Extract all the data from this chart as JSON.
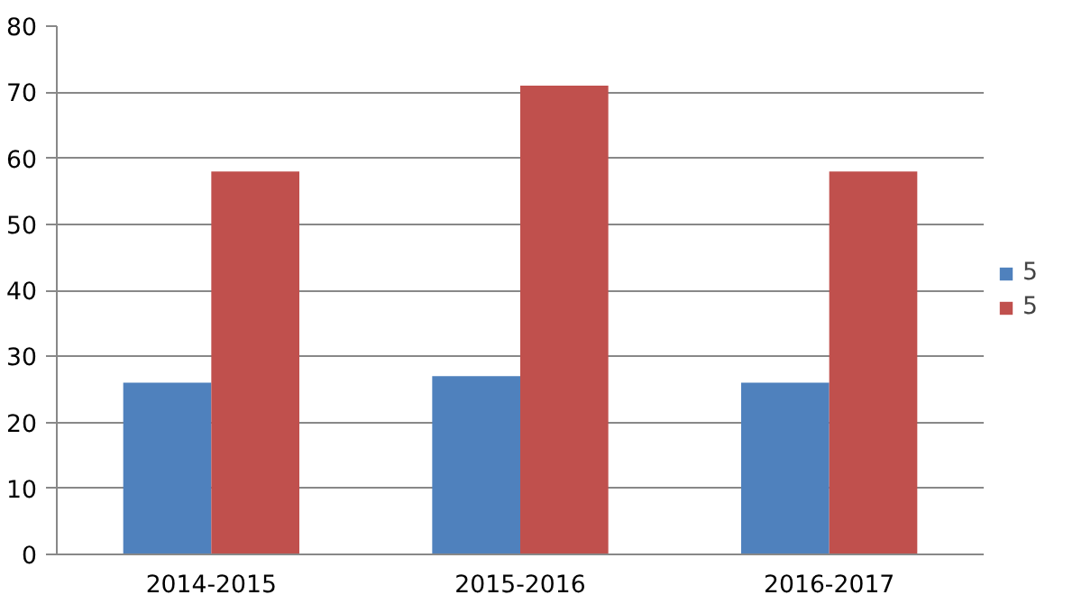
{
  "chart_data": {
    "type": "bar",
    "categories": [
      "2014-2015",
      "2015-2016",
      "2016-2017"
    ],
    "series": [
      {
        "name": "5",
        "color": "#4f81bd",
        "values": [
          26,
          27,
          26
        ]
      },
      {
        "name": "5",
        "color": "#c0504d",
        "values": [
          58,
          71,
          58
        ]
      }
    ],
    "ylim": [
      0,
      80
    ],
    "yticks": [
      0,
      10,
      20,
      30,
      40,
      50,
      60,
      70,
      80
    ],
    "grid": "y",
    "legend": "right"
  }
}
